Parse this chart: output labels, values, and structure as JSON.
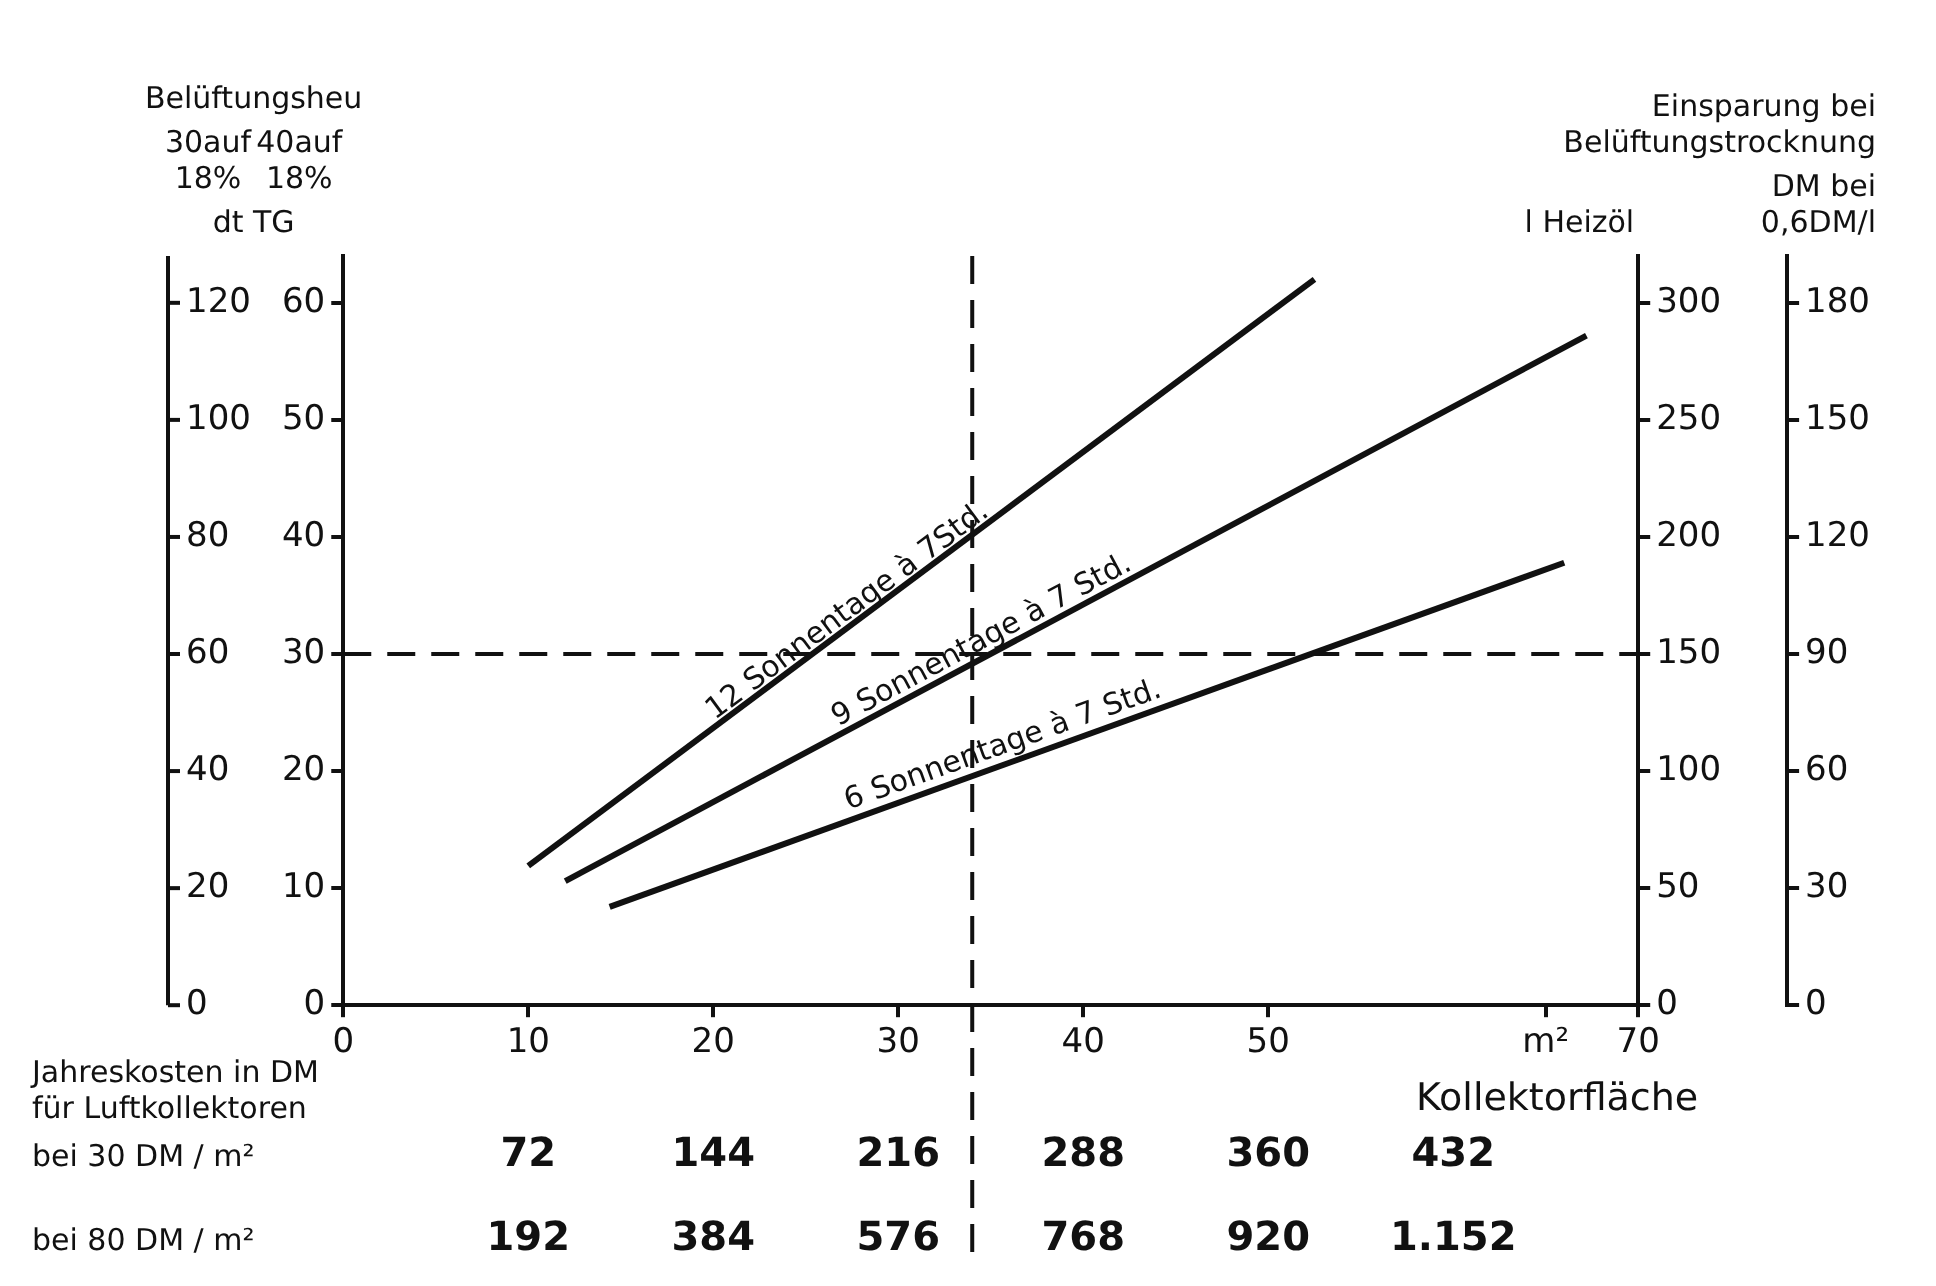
{
  "chart_data": {
    "type": "line",
    "xlabel": "Kollektorfläche",
    "ylabel": "40auf\n18%",
    "y2label": "l Heizöl",
    "y3label": "DM bei\n0,6DM/l",
    "annotations": [
      "Belüftungsheu",
      "dt TG",
      "Einsparung bei\nBelüftungstrocknung",
      "Jahreskosten in DM\nfür Luftkollektoren",
      "30auf\n18%",
      "bei 80 DM / m²",
      "192",
      "384",
      "576",
      "768",
      "920",
      "1.152",
      "0",
      "20",
      "40",
      "60",
      "80",
      "100",
      "120"
    ],
    "series": [
      {
        "name": "12 Sonnentage à 7Std.",
        "color": "#111111",
        "x": [
          10,
          52.5
        ],
        "values": [
          11.9,
          62
        ]
      },
      {
        "name": "9 Sonnentage à 7 Std.",
        "color": "#111111",
        "x": [
          12,
          67.2
        ],
        "values": [
          10.6,
          57.2
        ]
      },
      {
        "name": "6 Sonnentage à 7 Std.",
        "color": "#111111",
        "x": [
          14.4,
          66
        ],
        "values": [
          8.4,
          37.8
        ]
      }
    ],
    "xlim": [
      0,
      70
    ],
    "xticks": [
      0,
      10,
      20,
      30,
      40,
      50,
      {
        "value": 65,
        "label": "m²"
      },
      70
    ],
    "ylim": [
      0,
      64
    ],
    "yticks": [
      0,
      10,
      20,
      30,
      40,
      50,
      60
    ],
    "y2lim": [
      0,
      320
    ],
    "y2ticks": [
      0,
      50,
      100,
      150,
      200,
      250,
      300
    ],
    "y3lim": [
      0,
      192
    ],
    "y3ticks": [
      0,
      30,
      60,
      90,
      120,
      150,
      180
    ],
    "x2label": "bei 30 DM / m²",
    "x2lim": [
      0,
      504
    ],
    "x2ticks": [
      72,
      144,
      216,
      288,
      360,
      432
    ],
    "ref_lines": [
      {
        "axis": "y",
        "value": 30,
        "line_style": "dashed"
      },
      {
        "axis": "x",
        "value": 34,
        "line_style": "dashed"
      }
    ],
    "grid": false,
    "legend": false,
    "marker": "none",
    "line_style": "solid"
  }
}
